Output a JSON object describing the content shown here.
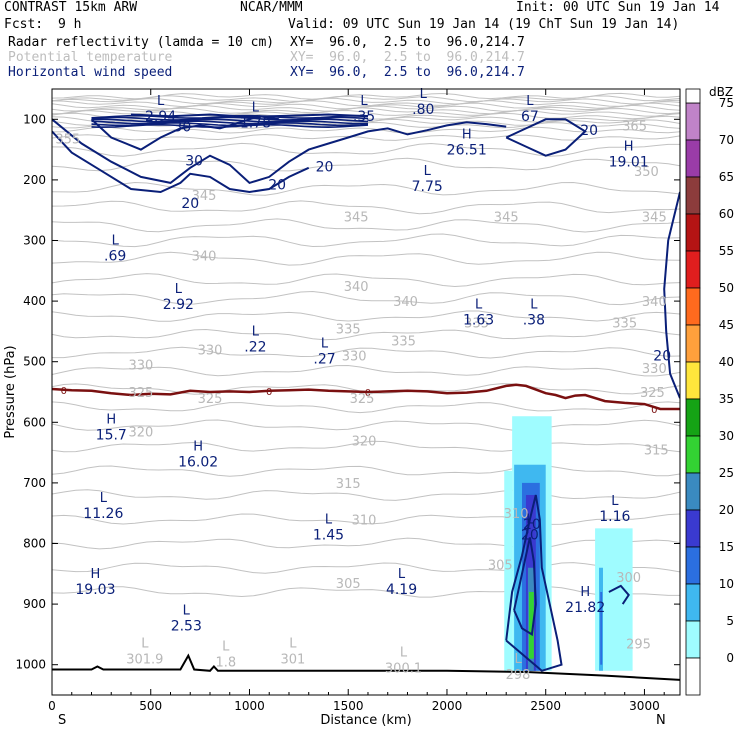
{
  "header": {
    "title": "CONTRAST 15km ARW",
    "org": "NCAR/MMM",
    "init": "Init: 00 UTC Sun 19 Jan 14",
    "fcst_label": "Fcst:",
    "fcst_value": "9 h",
    "valid": "Valid: 09 UTC Sun 19 Jan 14 (19 ChT Sun 19 Jan 14)",
    "fields": [
      {
        "name": "Radar reflectivity (lamda = 10 cm)",
        "xy": "XY=  96.0,  2.5 to  96.0,214.7",
        "color": "#000000"
      },
      {
        "name": "Potential temperature",
        "xy": "XY=  96.0,  2.5 to  96.0,214.7",
        "color": "#c8c8c8"
      },
      {
        "name": "Horizontal wind speed",
        "xy": "XY=  96.0,  2.5 to  96.0,214.7",
        "color": "#0a1f78"
      }
    ]
  },
  "chart_data": {
    "type": "contour-cross-section",
    "xlabel": "Distance (km)",
    "ylabel": "Pressure (hPa)",
    "xlim": [
      0,
      3180
    ],
    "ylim": [
      1050,
      50
    ],
    "y_inverted": true,
    "x_ticks": [
      0,
      500,
      1000,
      1500,
      2000,
      2500,
      3000
    ],
    "y_ticks": [
      100,
      200,
      300,
      400,
      500,
      600,
      700,
      800,
      900,
      1000
    ],
    "x_end_labels": {
      "left": "S",
      "right": "N"
    },
    "colorbar": {
      "unit": "dBZ",
      "levels": [
        0,
        5,
        10,
        15,
        20,
        25,
        30,
        35,
        40,
        45,
        50,
        55,
        60,
        65,
        70,
        75
      ],
      "colors": [
        "#ffffff",
        "#9ffcff",
        "#3fb8f0",
        "#2b6fe0",
        "#3a3ad0",
        "#3a8ac0",
        "#33d233",
        "#15a315",
        "#ffe63c",
        "#ffa03c",
        "#ff6a1e",
        "#e01e1e",
        "#b41414",
        "#8c3c3c",
        "#9a3ca8",
        "#c083c8"
      ]
    },
    "theta_labels": [
      {
        "text": "355",
        "x": 80,
        "p": 132
      },
      {
        "text": "365",
        "x": 2950,
        "p": 110
      },
      {
        "text": "350",
        "x": 3010,
        "p": 185
      },
      {
        "text": "345",
        "x": 770,
        "p": 225
      },
      {
        "text": "345",
        "x": 1540,
        "p": 260
      },
      {
        "text": "345",
        "x": 2300,
        "p": 260
      },
      {
        "text": "345",
        "x": 3050,
        "p": 260
      },
      {
        "text": "340",
        "x": 770,
        "p": 325
      },
      {
        "text": "340",
        "x": 1540,
        "p": 375
      },
      {
        "text": "340",
        "x": 1790,
        "p": 400
      },
      {
        "text": "340",
        "x": 3050,
        "p": 400
      },
      {
        "text": "335",
        "x": 1500,
        "p": 445
      },
      {
        "text": "335",
        "x": 1780,
        "p": 465
      },
      {
        "text": "335",
        "x": 2150,
        "p": 435
      },
      {
        "text": "335",
        "x": 2900,
        "p": 435
      },
      {
        "text": "330",
        "x": 800,
        "p": 480
      },
      {
        "text": "330",
        "x": 450,
        "p": 505
      },
      {
        "text": "330",
        "x": 1530,
        "p": 490
      },
      {
        "text": "330",
        "x": 3050,
        "p": 510
      },
      {
        "text": "325",
        "x": 450,
        "p": 550
      },
      {
        "text": "325",
        "x": 800,
        "p": 560
      },
      {
        "text": "325",
        "x": 1570,
        "p": 560
      },
      {
        "text": "325",
        "x": 3040,
        "p": 550
      },
      {
        "text": "320",
        "x": 450,
        "p": 615
      },
      {
        "text": "320",
        "x": 1580,
        "p": 630
      },
      {
        "text": "315",
        "x": 3060,
        "p": 645
      },
      {
        "text": "315",
        "x": 1500,
        "p": 700
      },
      {
        "text": "310",
        "x": 1580,
        "p": 760
      },
      {
        "text": "310",
        "x": 2350,
        "p": 750
      },
      {
        "text": "305",
        "x": 1500,
        "p": 865
      },
      {
        "text": "305",
        "x": 2270,
        "p": 835
      },
      {
        "text": "300",
        "x": 2920,
        "p": 855
      },
      {
        "text": "295",
        "x": 2970,
        "p": 965
      }
    ],
    "wind_labels": [
      {
        "text": "30",
        "x": 660,
        "p": 112
      },
      {
        "text": "30",
        "x": 720,
        "p": 168
      },
      {
        "text": "20",
        "x": 1380,
        "p": 178
      },
      {
        "text": "20",
        "x": 1140,
        "p": 208
      },
      {
        "text": "20",
        "x": 700,
        "p": 238
      },
      {
        "text": "20",
        "x": 2720,
        "p": 118
      },
      {
        "text": "20",
        "x": 3090,
        "p": 490
      },
      {
        "text": "20",
        "x": 2430,
        "p": 768
      }
    ],
    "extrema": [
      {
        "kind": "L",
        "value": "2.94",
        "x": 550,
        "p": 90
      },
      {
        "kind": "L",
        "value": "1.78",
        "x": 1030,
        "p": 100
      },
      {
        "kind": "L",
        "value": ".35",
        "x": 1580,
        "p": 90
      },
      {
        "kind": "L",
        "value": ".80",
        "x": 1880,
        "p": 78
      },
      {
        "kind": "L",
        "value": "67",
        "x": 2420,
        "p": 90
      },
      {
        "kind": "H",
        "value": "26.51",
        "x": 2100,
        "p": 145
      },
      {
        "kind": "H",
        "value": "19.01",
        "x": 2920,
        "p": 165
      },
      {
        "kind": "L",
        "value": "7.75",
        "x": 1900,
        "p": 205
      },
      {
        "kind": "L",
        "value": ".69",
        "x": 320,
        "p": 320
      },
      {
        "kind": "L",
        "value": "2.92",
        "x": 640,
        "p": 400
      },
      {
        "kind": "L",
        "value": ".22",
        "x": 1030,
        "p": 470
      },
      {
        "kind": "L",
        "value": ".27",
        "x": 1380,
        "p": 490
      },
      {
        "kind": "L",
        "value": "1.63",
        "x": 2160,
        "p": 425
      },
      {
        "kind": "L",
        "value": ".38",
        "x": 2440,
        "p": 425
      },
      {
        "kind": "H",
        "value": "15.7",
        "x": 300,
        "p": 615
      },
      {
        "kind": "H",
        "value": "16.02",
        "x": 740,
        "p": 660
      },
      {
        "kind": "L",
        "value": "11.26",
        "x": 260,
        "p": 745
      },
      {
        "kind": "L",
        "value": "1.45",
        "x": 1400,
        "p": 780
      },
      {
        "kind": "L",
        "value": "1.16",
        "x": 2850,
        "p": 750
      },
      {
        "kind": "H",
        "value": "19.03",
        "x": 220,
        "p": 870
      },
      {
        "kind": "L",
        "value": "4.19",
        "x": 1770,
        "p": 870
      },
      {
        "kind": "H",
        "value": "21.82",
        "x": 2700,
        "p": 900
      },
      {
        "kind": "L",
        "value": "2.53",
        "x": 680,
        "p": 930
      },
      {
        "kind": "L",
        "value": "20",
        "x": 2420,
        "p": 780
      }
    ],
    "surface_labels": [
      {
        "kind": "L",
        "value": "301.9",
        "x": 470,
        "p": 985
      },
      {
        "kind": "L",
        "value": "1.8",
        "x": 880,
        "p": 990
      },
      {
        "kind": "L",
        "value": "301",
        "x": 1220,
        "p": 985
      },
      {
        "kind": "L",
        "value": "300.1",
        "x": 1780,
        "p": 1000
      },
      {
        "kind": "L",
        "value": "298",
        "x": 2360,
        "p": 1010
      }
    ],
    "freezing_level": [
      [
        0,
        545
      ],
      [
        100,
        547
      ],
      [
        200,
        548
      ],
      [
        300,
        552
      ],
      [
        400,
        555
      ],
      [
        500,
        553
      ],
      [
        600,
        554
      ],
      [
        700,
        548
      ],
      [
        800,
        550
      ],
      [
        900,
        549
      ],
      [
        1000,
        550
      ],
      [
        1100,
        548
      ],
      [
        1200,
        547
      ],
      [
        1300,
        546
      ],
      [
        1400,
        548
      ],
      [
        1500,
        549
      ],
      [
        1600,
        550
      ],
      [
        1700,
        549
      ],
      [
        1800,
        548
      ],
      [
        1900,
        549
      ],
      [
        2000,
        552
      ],
      [
        2100,
        551
      ],
      [
        2200,
        548
      ],
      [
        2300,
        540
      ],
      [
        2350,
        538
      ],
      [
        2400,
        540
      ],
      [
        2500,
        552
      ],
      [
        2550,
        555
      ],
      [
        2600,
        560
      ],
      [
        2650,
        556
      ],
      [
        2700,
        555
      ],
      [
        2800,
        565
      ],
      [
        2900,
        568
      ],
      [
        3000,
        570
      ],
      [
        3080,
        578
      ],
      [
        3180,
        578
      ]
    ],
    "freezing_label": "0"
  },
  "axes": {
    "x_tick_labels": [
      "0",
      "500",
      "1000",
      "1500",
      "2000",
      "2500",
      "3000"
    ],
    "y_tick_labels": [
      "100",
      "200",
      "300",
      "400",
      "500",
      "600",
      "700",
      "800",
      "900",
      "1000"
    ]
  }
}
